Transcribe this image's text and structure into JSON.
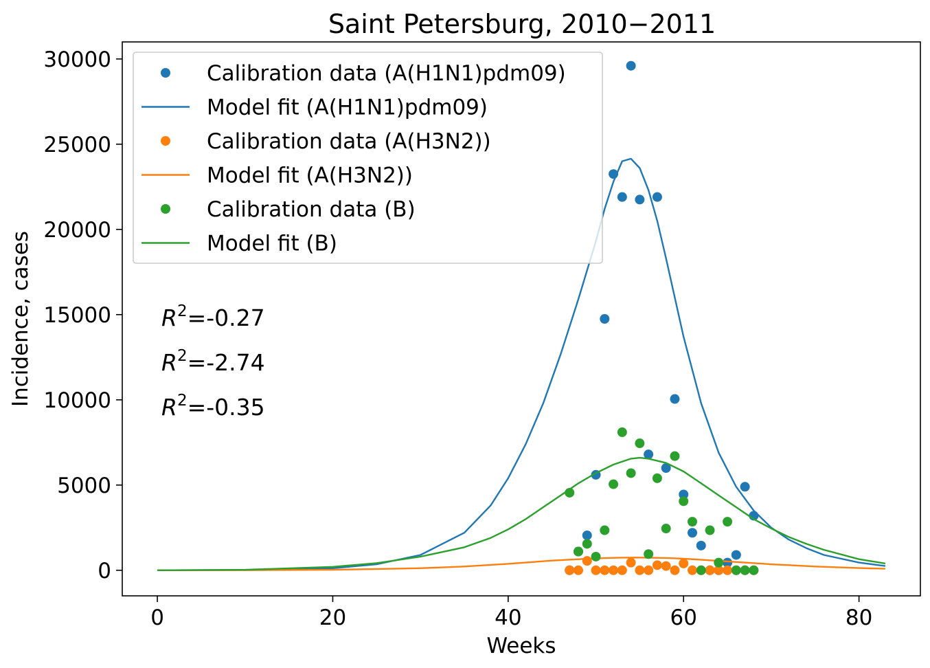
{
  "chart_data": {
    "type": "scatter",
    "title": "Saint Petersburg, 2010−2011",
    "xlabel": "Weeks",
    "ylabel": "Incidence, cases",
    "xlim": [
      -4,
      87
    ],
    "ylim": [
      -1500,
      31000
    ],
    "xticks": [
      0,
      20,
      40,
      60,
      80
    ],
    "yticks": [
      0,
      5000,
      10000,
      15000,
      20000,
      25000,
      30000
    ],
    "grid": false,
    "legend_position": "top-left",
    "series": [
      {
        "name": "Calibration data (A(H1N1)pdm09)",
        "kind": "points",
        "color": "#1f77b4",
        "x": [
          47,
          48,
          49,
          50,
          51,
          52,
          53,
          54,
          55,
          56,
          57,
          58,
          59,
          60,
          61,
          62,
          63,
          64,
          65,
          66,
          67,
          68
        ],
        "y": [
          0,
          1100,
          2050,
          5600,
          14750,
          23250,
          21900,
          29600,
          21750,
          6800,
          21900,
          6000,
          10050,
          4450,
          2200,
          1450,
          0,
          0,
          450,
          900,
          4900,
          3200
        ]
      },
      {
        "name": "Model fit (A(H1N1)pdm09)",
        "kind": "line",
        "color": "#1f77b4",
        "x": [
          0,
          10,
          20,
          25,
          30,
          35,
          38,
          40,
          42,
          44,
          46,
          48,
          50,
          51,
          52,
          53,
          54,
          55,
          56,
          57,
          58,
          60,
          62,
          64,
          66,
          68,
          70,
          72,
          74,
          76,
          80,
          83
        ],
        "y": [
          0,
          20,
          120,
          350,
          900,
          2200,
          3800,
          5400,
          7400,
          9800,
          12700,
          15900,
          19300,
          21200,
          22800,
          24000,
          24150,
          23600,
          22300,
          20500,
          18300,
          13700,
          9800,
          6900,
          4900,
          3500,
          2500,
          1800,
          1300,
          900,
          450,
          250
        ]
      },
      {
        "name": "Calibration data (A(H3N2))",
        "kind": "points",
        "color": "#ff7f0e",
        "x": [
          47,
          48,
          49,
          50,
          51,
          52,
          53,
          54,
          55,
          56,
          57,
          58,
          59,
          60,
          61,
          62,
          63,
          64,
          65,
          66,
          67,
          68
        ],
        "y": [
          0,
          0,
          550,
          0,
          0,
          0,
          0,
          450,
          0,
          0,
          300,
          250,
          0,
          400,
          0,
          0,
          0,
          0,
          0,
          0,
          0,
          0
        ]
      },
      {
        "name": "Model fit (A(H3N2))",
        "kind": "line",
        "color": "#ff7f0e",
        "x": [
          0,
          10,
          20,
          30,
          35,
          40,
          45,
          50,
          53,
          55,
          58,
          60,
          65,
          70,
          75,
          80,
          83
        ],
        "y": [
          0,
          5,
          30,
          120,
          220,
          380,
          570,
          700,
          740,
          745,
          720,
          680,
          520,
          350,
          220,
          130,
          90
        ]
      },
      {
        "name": "Calibration data (B)",
        "kind": "points",
        "color": "#2ca02c",
        "x": [
          47,
          48,
          49,
          50,
          51,
          52,
          53,
          54,
          55,
          56,
          57,
          58,
          59,
          60,
          61,
          62,
          63,
          64,
          65,
          66,
          67,
          68
        ],
        "y": [
          4550,
          1100,
          1550,
          800,
          2350,
          5050,
          8100,
          5700,
          7450,
          950,
          5400,
          2450,
          6700,
          4050,
          2850,
          0,
          2350,
          450,
          2850,
          0,
          0,
          0
        ]
      },
      {
        "name": "Model fit (B)",
        "kind": "line",
        "color": "#2ca02c",
        "x": [
          0,
          10,
          20,
          25,
          30,
          35,
          38,
          40,
          42,
          44,
          46,
          48,
          50,
          52,
          54,
          55,
          56,
          58,
          60,
          62,
          64,
          66,
          68,
          70,
          72,
          74,
          76,
          80,
          83
        ],
        "y": [
          0,
          30,
          200,
          420,
          800,
          1350,
          1900,
          2400,
          3000,
          3700,
          4400,
          5100,
          5700,
          6200,
          6550,
          6600,
          6550,
          6300,
          5800,
          5100,
          4400,
          3700,
          3000,
          2450,
          1950,
          1550,
          1200,
          650,
          400
        ]
      }
    ],
    "annotations": [
      {
        "text_prefix": "R",
        "superscript": "2",
        "text": "=-0.27",
        "color": "#1f77b4"
      },
      {
        "text_prefix": "R",
        "superscript": "2",
        "text": "=-2.74",
        "color": "#ff7f0e"
      },
      {
        "text_prefix": "R",
        "superscript": "2",
        "text": "=-0.35",
        "color": "#2ca02c"
      }
    ]
  }
}
